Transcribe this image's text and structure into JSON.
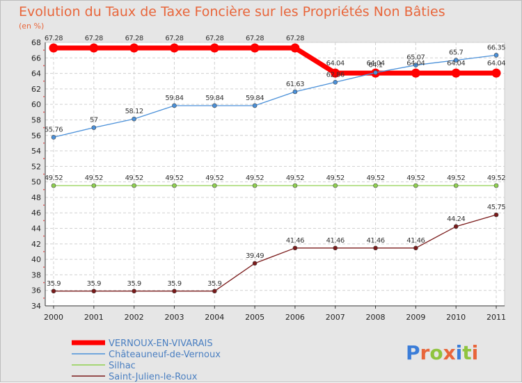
{
  "chart_data": {
    "type": "line",
    "title": "Evolution du Taux de Taxe Foncière sur les Propriétés Non Bâties",
    "ylabel": "(en %)",
    "ylim": [
      34,
      68
    ],
    "yticks": [
      "34",
      "36",
      "38",
      "40",
      "42",
      "44",
      "46",
      "48",
      "50",
      "52",
      "54",
      "56",
      "58",
      "60",
      "62",
      "64",
      "66",
      "68"
    ],
    "x": [
      "2000",
      "2001",
      "2002",
      "2003",
      "2004",
      "2005",
      "2006",
      "2007",
      "2008",
      "2009",
      "2010",
      "2011"
    ],
    "series": [
      {
        "name": "VERNOUX-EN-VIVARAIS",
        "color": "#ff0000",
        "values": [
          67.28,
          67.28,
          67.28,
          67.28,
          67.28,
          67.28,
          67.28,
          64.04,
          64.04,
          64.04,
          64.04,
          64.04
        ],
        "labels": [
          "67.28",
          "67.28",
          "67.28",
          "67.28",
          "67.28",
          "67.28",
          "67.28",
          "64.04",
          "64.04",
          "64.04",
          "64.04",
          "64.04"
        ]
      },
      {
        "name": "Châteauneuf-de-Vernoux",
        "color": "#4a90d9",
        "values": [
          55.76,
          57,
          58.12,
          59.84,
          59.84,
          59.84,
          61.63,
          62.86,
          64.1,
          65.07,
          65.7,
          66.35
        ],
        "labels": [
          "55.76",
          "57",
          "58.12",
          "59.84",
          "59.84",
          "59.84",
          "61.63",
          "62.86",
          "64.1",
          "65.07",
          "65.7",
          "66.35"
        ]
      },
      {
        "name": "Silhac",
        "color": "#8fd14f",
        "values": [
          49.52,
          49.52,
          49.52,
          49.52,
          49.52,
          49.52,
          49.52,
          49.52,
          49.52,
          49.52,
          49.52,
          49.52
        ],
        "labels": [
          "49.52",
          "49.52",
          "49.52",
          "49.52",
          "49.52",
          "49.52",
          "49.52",
          "49.52",
          "49.52",
          "49.52",
          "49.52",
          "49.52"
        ]
      },
      {
        "name": "Saint-Julien-le-Roux",
        "color": "#7a1a1a",
        "values": [
          35.9,
          35.9,
          35.9,
          35.9,
          35.9,
          39.49,
          41.46,
          41.46,
          41.46,
          41.46,
          44.24,
          45.75
        ],
        "labels": [
          "35.9",
          "35.9",
          "35.9",
          "35.9",
          "35.9",
          "39.49",
          "41.46",
          "41.46",
          "41.46",
          "41.46",
          "44.24",
          "45.75"
        ]
      }
    ]
  },
  "logo": {
    "text": "Proxiti"
  }
}
